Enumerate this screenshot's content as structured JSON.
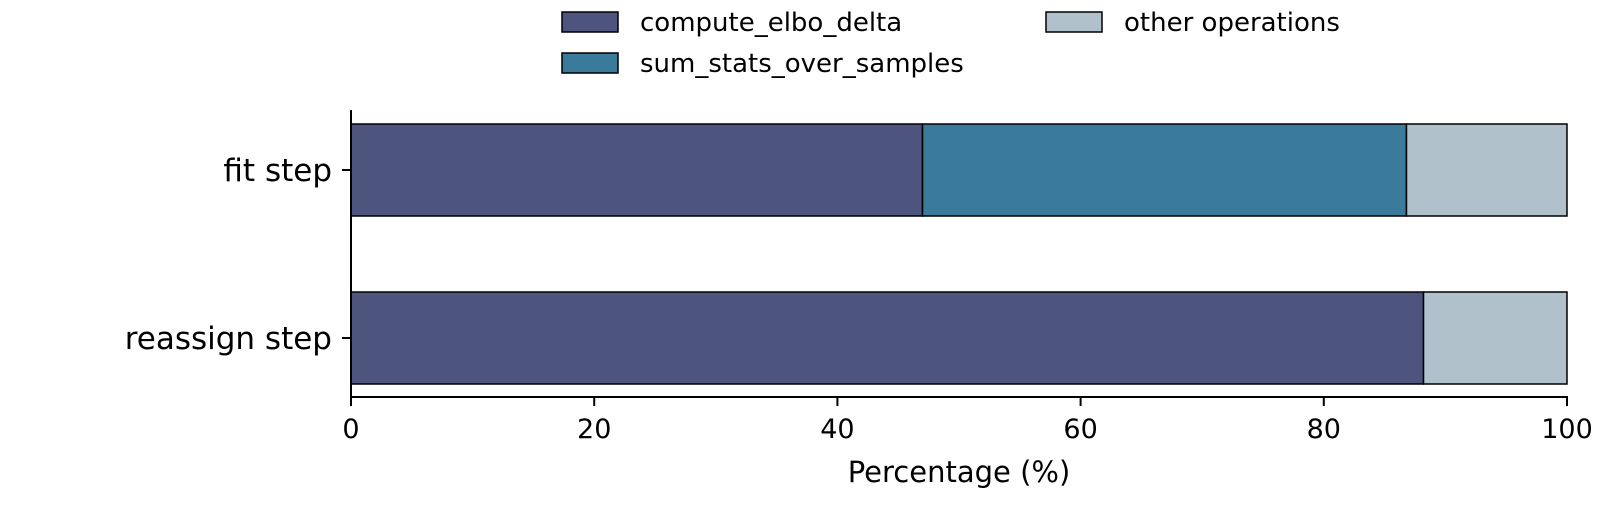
{
  "chart_data": {
    "type": "bar",
    "orientation": "horizontal",
    "stacked": true,
    "categories": [
      "fit step",
      "reassign step"
    ],
    "series": [
      {
        "name": "compute_elbo_delta",
        "color": "#4d547d",
        "values": [
          47.0,
          88.2
        ]
      },
      {
        "name": "sum_stats_over_samples",
        "color": "#3a7b9b",
        "values": [
          39.8,
          0
        ]
      },
      {
        "name": "other operations",
        "color": "#b1c1cc",
        "values": [
          13.2,
          11.8
        ]
      }
    ],
    "xlabel": "Percentage (%)",
    "ylabel": "",
    "xlim": [
      0,
      100
    ],
    "xticks": [
      0,
      20,
      40,
      60,
      80,
      100
    ],
    "legend_position": "top-center",
    "grid": false
  }
}
